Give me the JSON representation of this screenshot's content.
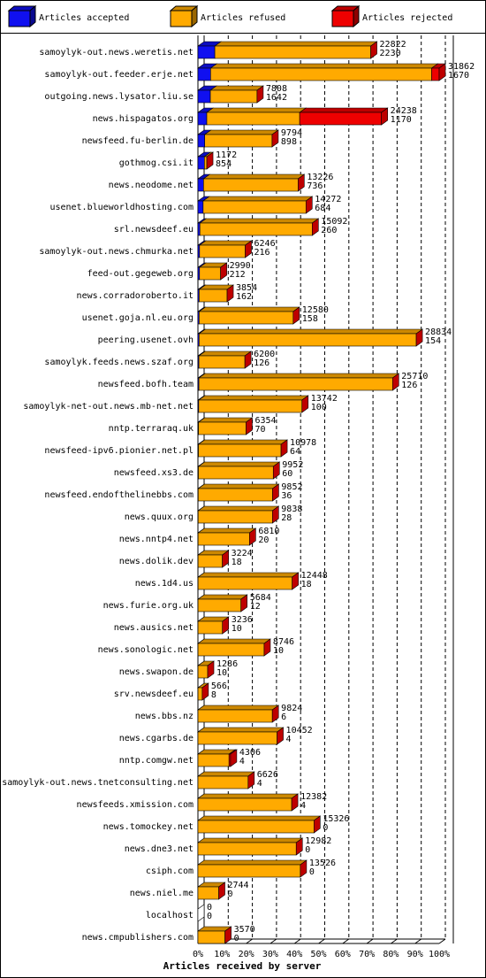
{
  "chart_data": {
    "type": "stacked-bar-3d-horizontal",
    "x_label": "Articles received by server",
    "categories": [
      "samoylyk-out.news.weretis.net",
      "samoylyk-out.feeder.erje.net",
      "outgoing.news.lysator.liu.se",
      "news.hispagatos.org",
      "newsfeed.fu-berlin.de",
      "gothmog.csi.it",
      "news.neodome.net",
      "usenet.blueworldhosting.com",
      "srl.newsdeef.eu",
      "samoylyk-out.news.chmurka.net",
      "feed-out.gegeweb.org",
      "news.corradoroberto.it",
      "usenet.goja.nl.eu.org",
      "peering.usenet.ovh",
      "samoylyk.feeds.news.szaf.org",
      "newsfeed.bofh.team",
      "samoylyk-net-out.news.mb-net.net",
      "nntp.terraraq.uk",
      "newsfeed-ipv6.pionier.net.pl",
      "newsfeed.xs3.de",
      "newsfeed.endofthelinebbs.com",
      "news.quux.org",
      "news.nntp4.net",
      "news.dolik.dev",
      "news.1d4.us",
      "news.furie.org.uk",
      "news.ausics.net",
      "news.sonologic.net",
      "news.swapon.de",
      "srv.newsdeef.eu",
      "news.bbs.nz",
      "news.cgarbs.de",
      "nntp.comgw.net",
      "samoylyk-out.news.tnetconsulting.net",
      "newsfeeds.xmission.com",
      "news.tomockey.net",
      "news.dne3.net",
      "csiph.com",
      "news.niel.me",
      "localhost",
      "news.cmpublishers.com"
    ],
    "totals": [
      22822,
      31862,
      7808,
      24238,
      9794,
      1172,
      13226,
      14272,
      15092,
      6246,
      2990,
      3854,
      12580,
      28834,
      6200,
      25710,
      13742,
      6354,
      10978,
      9952,
      9852,
      9838,
      6810,
      3224,
      12448,
      5684,
      3236,
      8746,
      1286,
      566,
      9824,
      10452,
      4306,
      6626,
      12382,
      15326,
      12982,
      13526,
      2744,
      0,
      3570
    ],
    "series": [
      {
        "name": "Articles accepted",
        "color": "#1010f0",
        "values": [
          2230,
          1670,
          1642,
          1170,
          898,
          854,
          736,
          684,
          260,
          216,
          212,
          162,
          158,
          154,
          126,
          126,
          100,
          70,
          64,
          60,
          36,
          28,
          20,
          18,
          18,
          12,
          10,
          10,
          10,
          8,
          6,
          4,
          4,
          4,
          4,
          0,
          0,
          0,
          0,
          0,
          0
        ]
      },
      {
        "name": "Articles refused",
        "color": "#ffaa00",
        "values": [
          20592,
          29192,
          6166,
          12268,
          8896,
          318,
          12490,
          13588,
          14832,
          6030,
          2778,
          3692,
          12422,
          28680,
          6074,
          25584,
          13642,
          6284,
          10914,
          9892,
          9816,
          9810,
          6790,
          3206,
          12430,
          5672,
          3226,
          8736,
          1276,
          558,
          9818,
          10448,
          4102,
          6622,
          12378,
          15326,
          12982,
          13526,
          2744,
          0,
          3570
        ]
      },
      {
        "name": "Articles rejected",
        "color": "#ee0000",
        "values": [
          0,
          1000,
          0,
          10800,
          0,
          0,
          0,
          0,
          0,
          0,
          0,
          0,
          0,
          0,
          0,
          0,
          0,
          0,
          0,
          0,
          0,
          0,
          0,
          0,
          0,
          0,
          0,
          0,
          0,
          0,
          0,
          0,
          200,
          0,
          0,
          0,
          0,
          0,
          0,
          0,
          0
        ]
      }
    ],
    "xlim": [
      0,
      31862
    ],
    "xticks": [
      {
        "value": 0,
        "label": "0%"
      },
      {
        "value": 3186.2,
        "label": "10%"
      },
      {
        "value": 6372.4,
        "label": "20%"
      },
      {
        "value": 9558.6,
        "label": "30%"
      },
      {
        "value": 12744.8,
        "label": "40%"
      },
      {
        "value": 15931,
        "label": "50%"
      },
      {
        "value": 19117.2,
        "label": "60%"
      },
      {
        "value": 22303.4,
        "label": "70%"
      },
      {
        "value": 25489.6,
        "label": "80%"
      },
      {
        "value": 28675.8,
        "label": "90%"
      },
      {
        "value": 31862,
        "label": "100%"
      }
    ],
    "grid": true
  }
}
